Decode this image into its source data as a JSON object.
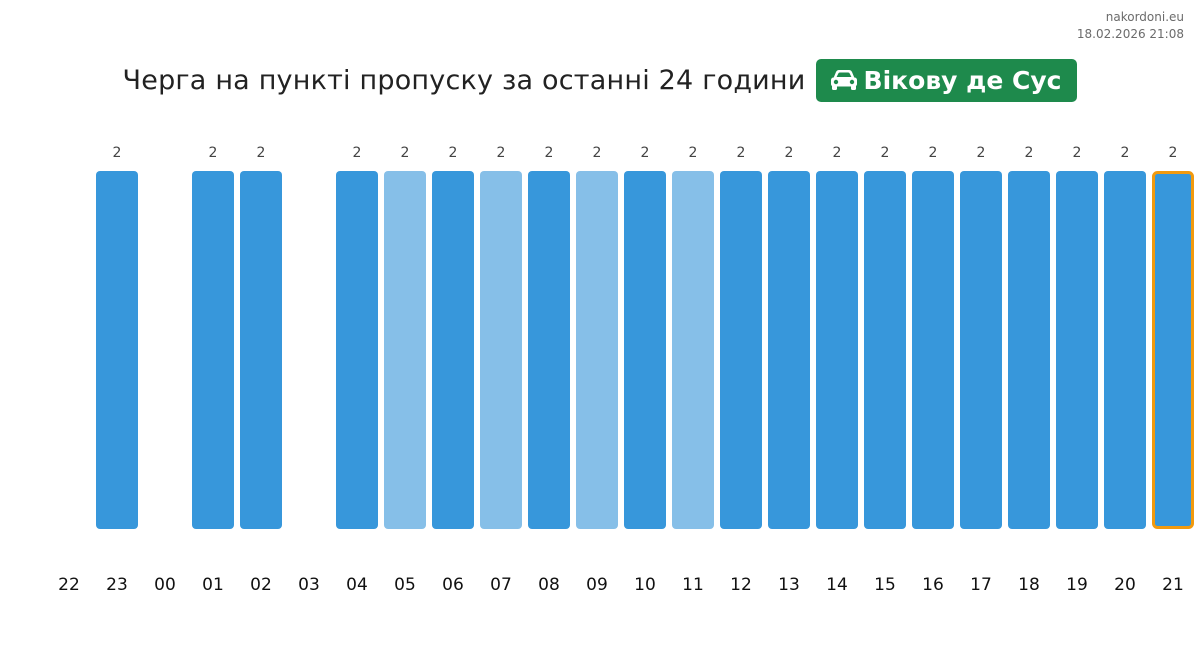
{
  "site": {
    "domain": "nakordoni.eu",
    "timestamp": "18.02.2026 21:08"
  },
  "title": "Черга на пункті пропуску за останні 24 години",
  "badge": {
    "label": "Вікову де Сус",
    "icon": "car-icon",
    "color": "#1e8a4c"
  },
  "colors": {
    "bar": "#3797db",
    "bar_light": "#86bfe8",
    "highlight_border": "#f29a0e",
    "value_label": "#444444",
    "hour_label": "#111111"
  },
  "chart_data": {
    "type": "bar",
    "categories": [
      "22",
      "23",
      "00",
      "01",
      "02",
      "03",
      "04",
      "05",
      "06",
      "07",
      "08",
      "09",
      "10",
      "11",
      "12",
      "13",
      "14",
      "15",
      "16",
      "17",
      "18",
      "19",
      "20",
      "21"
    ],
    "values": [
      null,
      2,
      null,
      2,
      2,
      null,
      2,
      2,
      2,
      2,
      2,
      2,
      2,
      2,
      2,
      2,
      2,
      2,
      2,
      2,
      2,
      2,
      2,
      2
    ],
    "light_bars": [
      "05",
      "07",
      "09",
      "11"
    ],
    "highlighted": "21",
    "title": "Черга на пункті пропуску за останні 24 години",
    "xlabel": "",
    "ylabel": "",
    "ylim": [
      0,
      2
    ],
    "grid": false,
    "legend": "none"
  }
}
